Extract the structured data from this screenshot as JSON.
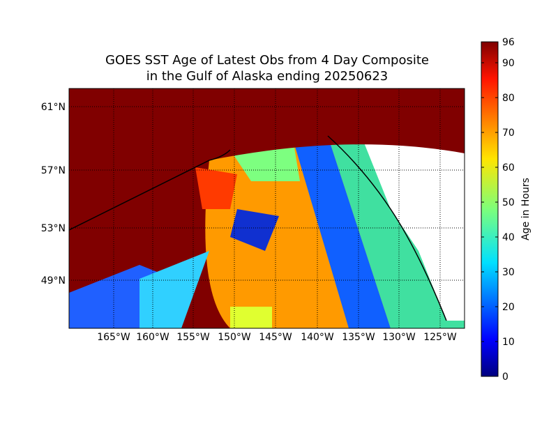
{
  "title": [
    "GOES SST Age of Latest Obs from 4 Day Composite",
    "in the Gulf of Alaska ending 20250623"
  ],
  "map": {
    "longitude_labels": [
      "165°W",
      "160°W",
      "155°W",
      "150°W",
      "145°W",
      "140°W",
      "135°W",
      "130°W",
      "125°W"
    ],
    "latitude_labels": [
      "61°N",
      "57°N",
      "53°N",
      "49°N"
    ]
  },
  "colorbar": {
    "label": "Age in Hours",
    "range": [
      0,
      96
    ],
    "ticks": [
      0,
      10,
      20,
      30,
      40,
      50,
      60,
      70,
      80,
      90,
      96
    ]
  }
}
